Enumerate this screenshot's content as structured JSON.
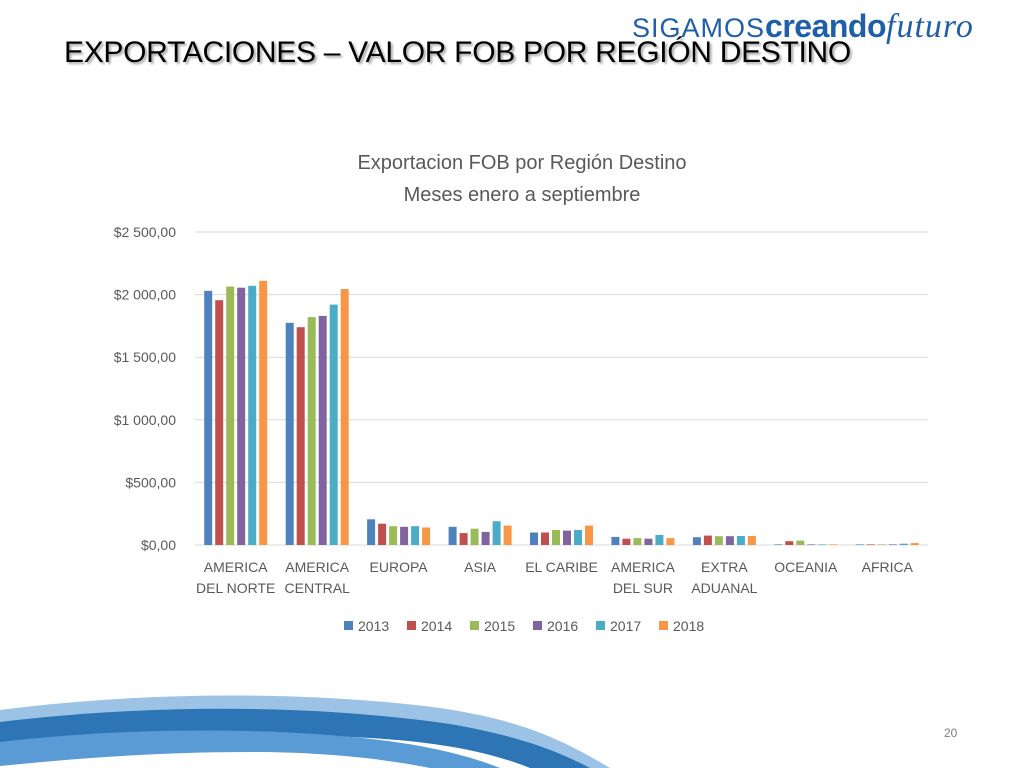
{
  "slide": {
    "title": "EXPORTACIONES – VALOR FOB POR REGIÓN DESTINO",
    "page_number": "20"
  },
  "logo": {
    "part1": "SIGAMOS",
    "part2": "creando",
    "part3": "futuro"
  },
  "colors": {
    "logo_blue": "#1f5fa8",
    "series": [
      "#4f81bd",
      "#c0504d",
      "#9bbb59",
      "#8064a2",
      "#4bacc6",
      "#f79646"
    ]
  },
  "chart_data": {
    "type": "bar",
    "title": "Exportacion FOB por Región Destino",
    "subtitle": "Meses enero a septiembre",
    "xlabel": "",
    "ylabel": "",
    "ylim": [
      0,
      2500
    ],
    "yticks": [
      "$0,00",
      "$500,00",
      "$1 000,00",
      "$1 500,00",
      "$2 000,00",
      "$2 500,00"
    ],
    "ytick_values": [
      0,
      500,
      1000,
      1500,
      2000,
      2500
    ],
    "grid": true,
    "legend": "bottom",
    "categories": [
      [
        "AMERICA",
        "DEL NORTE"
      ],
      [
        "AMERICA",
        "CENTRAL"
      ],
      [
        "EUROPA"
      ],
      [
        "ASIA"
      ],
      [
        "EL CARIBE"
      ],
      [
        "AMERICA",
        "DEL SUR"
      ],
      [
        "EXTRA",
        "ADUANAL"
      ],
      [
        "OCEANIA"
      ],
      [
        "AFRICA"
      ]
    ],
    "series": [
      {
        "name": "2013",
        "color": "#4f81bd",
        "values": [
          2030,
          1775,
          205,
          145,
          100,
          65,
          62,
          5,
          5
        ]
      },
      {
        "name": "2014",
        "color": "#c0504d",
        "values": [
          1955,
          1740,
          170,
          95,
          100,
          50,
          75,
          30,
          5
        ]
      },
      {
        "name": "2015",
        "color": "#9bbb59",
        "values": [
          2065,
          1820,
          150,
          130,
          120,
          55,
          70,
          35,
          5
        ]
      },
      {
        "name": "2016",
        "color": "#8064a2",
        "values": [
          2055,
          1830,
          145,
          105,
          115,
          50,
          70,
          5,
          5
        ]
      },
      {
        "name": "2017",
        "color": "#4bacc6",
        "values": [
          2070,
          1920,
          150,
          190,
          120,
          80,
          72,
          5,
          10
        ]
      },
      {
        "name": "2018",
        "color": "#f79646",
        "values": [
          2110,
          2045,
          140,
          155,
          155,
          55,
          72,
          5,
          15
        ]
      }
    ]
  }
}
